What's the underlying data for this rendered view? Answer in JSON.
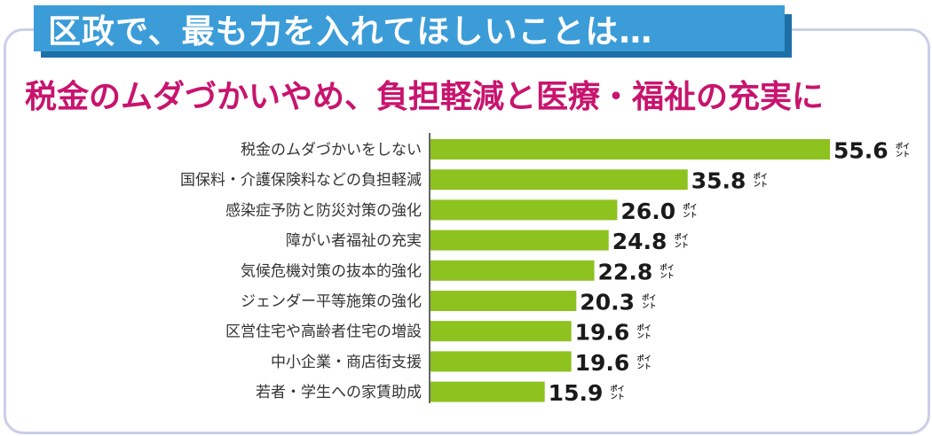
{
  "header": {
    "title": "区政で、最も力を入れてほしいことは…",
    "subtitle": "税金のムダづかいやめ、負担軽減と医療・福祉の充実に"
  },
  "colors": {
    "bar": "#8dc21f",
    "banner": "#3b9cd8",
    "subtitle": "#c8146e",
    "frame": "#c9cfe8"
  },
  "chart_data": {
    "type": "bar",
    "orientation": "horizontal",
    "unit_label": "ポイント",
    "categories": [
      "税金のムダづかいをしない",
      "国保料・介護保険料などの負担軽減",
      "感染症予防と防災対策の強化",
      "障がい者福祉の充実",
      "気候危機対策の抜本的強化",
      "ジェンダー平等施策の強化",
      "区営住宅や高齢者住宅の増設",
      "中小企業・商店街支援",
      "若者・学生への家賃助成"
    ],
    "values": [
      55.6,
      35.8,
      26.0,
      24.8,
      22.8,
      20.3,
      19.6,
      19.6,
      15.9
    ],
    "value_labels": [
      "55.6",
      "35.8",
      "26.0",
      "24.8",
      "22.8",
      "20.3",
      "19.6",
      "19.6",
      "15.9"
    ],
    "xlim": [
      0,
      55.6
    ],
    "grid": false,
    "legend": "none"
  }
}
